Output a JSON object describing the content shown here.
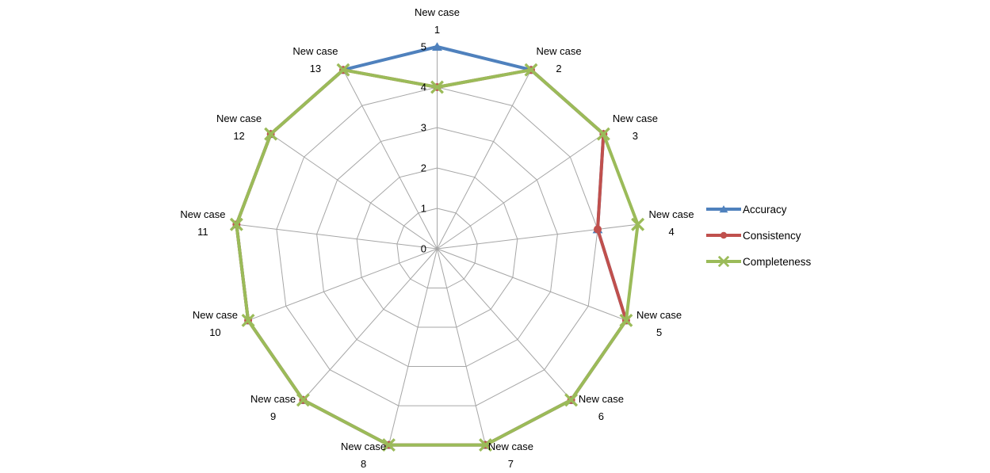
{
  "chart_data": {
    "type": "line",
    "variant": "radar",
    "axis_count": 13,
    "axis_labels": [
      {
        "text": "New case",
        "number": "1"
      },
      {
        "text": "New case",
        "number": "2"
      },
      {
        "text": "New case",
        "number": "3"
      },
      {
        "text": "New case",
        "number": "4"
      },
      {
        "text": "New case",
        "number": "5"
      },
      {
        "text": "New case",
        "number": "6"
      },
      {
        "text": "New case",
        "number": "7"
      },
      {
        "text": "New case",
        "number": "8"
      },
      {
        "text": "New case",
        "number": "9"
      },
      {
        "text": "New case",
        "number": "10"
      },
      {
        "text": "New case",
        "number": "11"
      },
      {
        "text": "New case",
        "number": "12"
      },
      {
        "text": "New case",
        "number": "13"
      }
    ],
    "series": [
      {
        "name": "Accuracy",
        "color": "#4F81BD",
        "marker": "triangle",
        "values": [
          5,
          5,
          5,
          4,
          5,
          5,
          5,
          5,
          5,
          5,
          5,
          5,
          5
        ]
      },
      {
        "name": "Consistency",
        "color": "#C0504D",
        "marker": "circle",
        "values": [
          4,
          5,
          5,
          4,
          5,
          5,
          5,
          5,
          5,
          5,
          5,
          5,
          5
        ]
      },
      {
        "name": "Completeness",
        "color": "#9BBB59",
        "marker": "x",
        "values": [
          4,
          5,
          5,
          5,
          5,
          5,
          5,
          5,
          5,
          5,
          5,
          5,
          5
        ]
      }
    ],
    "r_axis": {
      "min": 0,
      "max": 5,
      "tick_labels": [
        "0",
        "1",
        "2",
        "3",
        "4",
        "5"
      ]
    },
    "grid": {
      "show": true,
      "color": "#A6A6A6"
    },
    "legend": {
      "position": "right"
    },
    "text_color": "#000000",
    "background": "#FFFFFF"
  }
}
